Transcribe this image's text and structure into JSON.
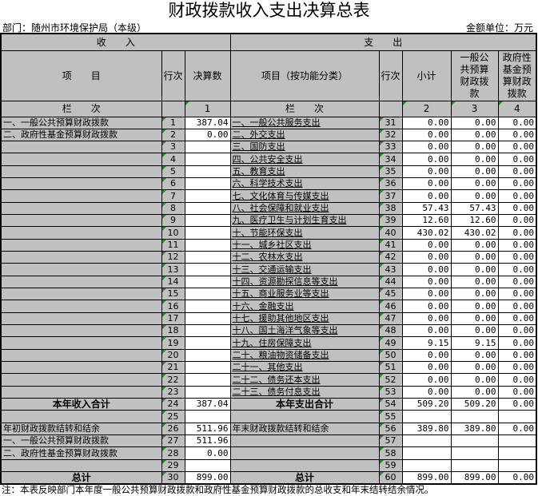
{
  "title": "财政拨款收入支出决算总表",
  "department": "部门：随州市环境保护局（本级）",
  "unit": "金额单位：万元",
  "headers": {
    "income": "收　　入",
    "expense": "支　　出",
    "item": "项　　目",
    "row_no": "行次",
    "amount": "决算数",
    "exp_item": "项目（按功能分类）",
    "subtotal": "小计",
    "general": "一般公共预算财政拨款",
    "gov_fund": "政府性基金预算财政拨款",
    "col_label": "栏　　次",
    "c1": "1",
    "c2": "2",
    "c3": "3",
    "c4": "4"
  },
  "rows": [
    {
      "l": "一、一般公共预算财政拨款",
      "ln": "1",
      "la": "387.04",
      "r": "一、一般公共服务支出",
      "rn": "31",
      "s": "0.00",
      "g": "0.00",
      "f": "0.00"
    },
    {
      "l": "二、政府性基金预算财政拨款",
      "ln": "2",
      "la": "0.00",
      "r": "二、外交支出",
      "rn": "32",
      "s": "0.00",
      "g": "0.00",
      "f": "0.00"
    },
    {
      "l": "",
      "ln": "3",
      "la": "",
      "r": "三、国防支出",
      "rn": "33",
      "s": "0.00",
      "g": "0.00",
      "f": "0.00"
    },
    {
      "l": "",
      "ln": "4",
      "la": "",
      "r": "四、公共安全支出",
      "rn": "34",
      "s": "0.00",
      "g": "0.00",
      "f": "0.00"
    },
    {
      "l": "",
      "ln": "5",
      "la": "",
      "r": "五、教育支出",
      "rn": "35",
      "s": "0.00",
      "g": "0.00",
      "f": "0.00"
    },
    {
      "l": "",
      "ln": "6",
      "la": "",
      "r": "六、科学技术支出",
      "rn": "36",
      "s": "0.00",
      "g": "0.00",
      "f": "0.00"
    },
    {
      "l": "",
      "ln": "7",
      "la": "",
      "r": "七、文化体育与传媒支出",
      "rn": "37",
      "s": "0.00",
      "g": "0.00",
      "f": "0.00"
    },
    {
      "l": "",
      "ln": "8",
      "la": "",
      "r": "八、社会保障和就业支出",
      "rn": "38",
      "s": "57.43",
      "g": "57.43",
      "f": "0.00"
    },
    {
      "l": "",
      "ln": "9",
      "la": "",
      "r": "九、医疗卫生与计划生育支出",
      "rn": "39",
      "s": "12.60",
      "g": "12.60",
      "f": "0.00"
    },
    {
      "l": "",
      "ln": "10",
      "la": "",
      "r": "十、节能环保支出",
      "rn": "40",
      "s": "430.02",
      "g": "430.02",
      "f": "0.00"
    },
    {
      "l": "",
      "ln": "11",
      "la": "",
      "r": "十一、城乡社区支出",
      "rn": "41",
      "s": "0.00",
      "g": "0.00",
      "f": "0.00"
    },
    {
      "l": "",
      "ln": "12",
      "la": "",
      "r": "十二、农林水支出",
      "rn": "42",
      "s": "0.00",
      "g": "0.00",
      "f": "0.00"
    },
    {
      "l": "",
      "ln": "13",
      "la": "",
      "r": "十三、交通运输支出",
      "rn": "43",
      "s": "0.00",
      "g": "0.00",
      "f": "0.00"
    },
    {
      "l": "",
      "ln": "14",
      "la": "",
      "r": "十四、资源勘探信息等支出",
      "rn": "44",
      "s": "0.00",
      "g": "0.00",
      "f": "0.00"
    },
    {
      "l": "",
      "ln": "15",
      "la": "",
      "r": "十五、商业服务业等支出",
      "rn": "45",
      "s": "0.00",
      "g": "0.00",
      "f": "0.00"
    },
    {
      "l": "",
      "ln": "16",
      "la": "",
      "r": "十六、金融支出",
      "rn": "46",
      "s": "0.00",
      "g": "0.00",
      "f": "0.00"
    },
    {
      "l": "",
      "ln": "17",
      "la": "",
      "r": "十七、援助其他地区支出",
      "rn": "47",
      "s": "0.00",
      "g": "0.00",
      "f": "0.00"
    },
    {
      "l": "",
      "ln": "18",
      "la": "",
      "r": "十八、国土海洋气象等支出",
      "rn": "48",
      "s": "0.00",
      "g": "0.00",
      "f": "0.00"
    },
    {
      "l": "",
      "ln": "19",
      "la": "",
      "r": "十九、住房保障支出",
      "rn": "49",
      "s": "9.15",
      "g": "9.15",
      "f": "0.00"
    },
    {
      "l": "",
      "ln": "20",
      "la": "",
      "r": "二十、粮油物资储备支出",
      "rn": "50",
      "s": "0.00",
      "g": "0.00",
      "f": "0.00"
    },
    {
      "l": "",
      "ln": "21",
      "la": "",
      "r": "二十一、其他支出",
      "rn": "51",
      "s": "0.00",
      "g": "0.00",
      "f": "0.00"
    },
    {
      "l": "",
      "ln": "22",
      "la": "",
      "r": "二十二、债务还本支出",
      "rn": "52",
      "s": "0.00",
      "g": "0.00",
      "f": "0.00"
    },
    {
      "l": "",
      "ln": "23",
      "la": "",
      "r": "二十三、债务付息支出",
      "rn": "53",
      "s": "0.00",
      "g": "0.00",
      "f": "0.00"
    },
    {
      "l": "本年收入合计",
      "ln": "24",
      "la": "387.04",
      "r": "本年支出合计",
      "rn": "54",
      "s": "509.20",
      "g": "509.20",
      "f": "0.00",
      "bold": true
    },
    {
      "l": "",
      "ln": "25",
      "la": "",
      "r": "",
      "rn": "55",
      "s": "",
      "g": "",
      "f": ""
    },
    {
      "l": "年初财政拨款结转和结余",
      "ln": "26",
      "la": "511.96",
      "r": "年末财政拨款结转和结余",
      "rn": "56",
      "s": "389.80",
      "g": "389.80",
      "f": "0.00"
    },
    {
      "l": "一、一般公共预算财政拨款",
      "ln": "27",
      "la": "511.96",
      "r": "",
      "rn": "57",
      "s": "",
      "g": "",
      "f": ""
    },
    {
      "l": "二、政府性基金预算财政拨款",
      "ln": "28",
      "la": "0.00",
      "r": "",
      "rn": "58",
      "s": "",
      "g": "",
      "f": ""
    },
    {
      "l": "",
      "ln": "29",
      "la": "",
      "r": "",
      "rn": "59",
      "s": "",
      "g": "",
      "f": ""
    },
    {
      "l": "总计",
      "ln": "30",
      "la": "899.00",
      "r": "总计",
      "rn": "60",
      "s": "899.00",
      "g": "899.00",
      "f": "0.00",
      "bold": true
    }
  ],
  "note": "注：本表反映部门本年度一般公共预算财政拨款和政府性基金预算财政拨款的总收支和年末结转结余情况。",
  "colors": {
    "header_bg": "#c0c0c0",
    "marker": "#1a8f1a"
  }
}
